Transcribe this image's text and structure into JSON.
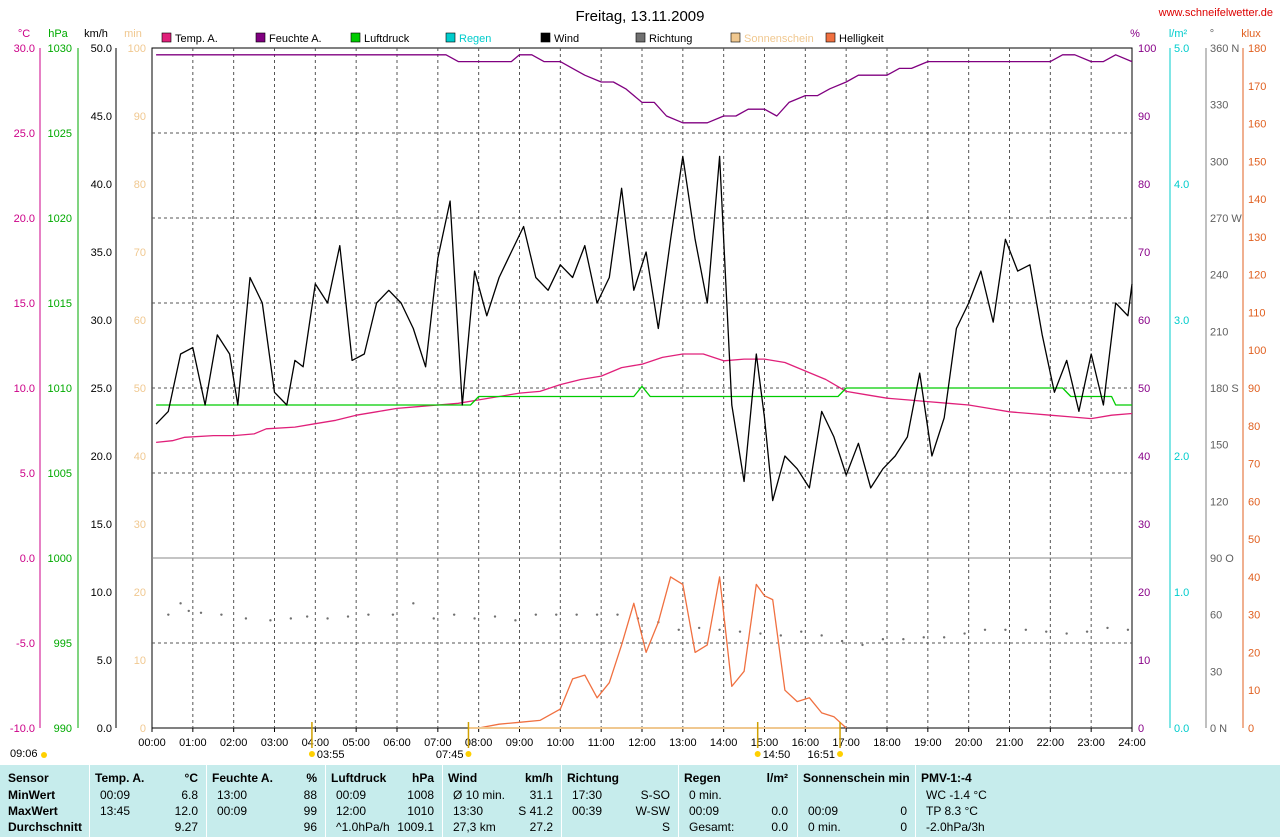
{
  "chart_data": {
    "type": "line",
    "title": "Freitag, 13.11.2009",
    "source": "www.schneifelwetter.de",
    "x_ticks": [
      "00:00",
      "01:00",
      "02:00",
      "03:00",
      "04:00",
      "05:00",
      "06:00",
      "07:00",
      "08:00",
      "09:00",
      "10:00",
      "11:00",
      "12:00",
      "13:00",
      "14:00",
      "15:00",
      "16:00",
      "17:00",
      "18:00",
      "19:00",
      "20:00",
      "21:00",
      "22:00",
      "23:00",
      "24:00"
    ],
    "axes": {
      "temp": {
        "unit": "°C",
        "ticks": [
          "30.0",
          "25.0",
          "20.0",
          "15.0",
          "10.0",
          "5.0",
          "0.0",
          "-5.0",
          "-10.0"
        ],
        "range": [
          -10,
          30
        ],
        "color": "#cc0088"
      },
      "pressure": {
        "unit": "hPa",
        "ticks": [
          "1030",
          "1025",
          "1020",
          "1015",
          "1010",
          "1005",
          "1000",
          "995",
          "990"
        ],
        "range": [
          990,
          1030
        ],
        "color": "#00aa00"
      },
      "wind": {
        "unit": "km/h",
        "ticks": [
          "50.0",
          "45.0",
          "40.0",
          "35.0",
          "30.0",
          "25.0",
          "20.0",
          "15.0",
          "10.0",
          "5.0",
          "0.0"
        ],
        "range_upper": [
          10,
          50
        ],
        "color": "#000000"
      },
      "minutes": {
        "unit": "min",
        "ticks": [
          "100",
          "90",
          "80",
          "70",
          "60",
          "50",
          "40",
          "30",
          "20",
          "10",
          "0"
        ],
        "color": "#f0c890"
      },
      "humidity": {
        "unit": "%",
        "ticks": [
          "100",
          "90",
          "80",
          "70",
          "60",
          "50",
          "40",
          "30",
          "20",
          "10",
          "0"
        ],
        "range": [
          0,
          100
        ],
        "color": "#880088"
      },
      "rain": {
        "unit": "l/m²",
        "ticks": [
          "5.0",
          "4.0",
          "3.0",
          "2.0",
          "1.0",
          "0.0"
        ],
        "range": [
          0,
          5
        ],
        "color": "#00cccc"
      },
      "direction": {
        "unit": "°",
        "ticks": [
          "360 N",
          "330",
          "300",
          "270 W",
          "240",
          "210",
          "180 S",
          "150",
          "120",
          "90 O",
          "60",
          "30",
          "0 N"
        ],
        "range": [
          0,
          360
        ],
        "color": "#808080"
      },
      "brightness": {
        "unit": "klux",
        "ticks": [
          "180",
          "170",
          "160",
          "150",
          "140",
          "130",
          "120",
          "110",
          "100",
          "90",
          "80",
          "70",
          "60",
          "50",
          "40",
          "30",
          "20",
          "10",
          "0"
        ],
        "range": [
          0,
          180
        ],
        "color": "#e06020"
      }
    },
    "legend": [
      {
        "name": "Temp. A.",
        "color": "#e0207a"
      },
      {
        "name": "Feuchte A.",
        "color": "#800080"
      },
      {
        "name": "Luftdruck",
        "color": "#00cc00"
      },
      {
        "name": "Regen",
        "color": "#00cccc"
      },
      {
        "name": "Wind",
        "color": "#000000"
      },
      {
        "name": "Richtung",
        "color": "#707070"
      },
      {
        "name": "Sonnenschein",
        "color": "#f0c890"
      },
      {
        "name": "Helligkeit",
        "color": "#f07040"
      }
    ],
    "series": [
      {
        "key": "temp",
        "axis": "temp",
        "color": "#e0207a",
        "x": [
          0.1,
          0.5,
          0.8,
          1.5,
          2.0,
          2.5,
          2.8,
          3.5,
          4.0,
          4.5,
          5.0,
          5.5,
          6.0,
          6.5,
          7.0,
          7.5,
          8.0,
          8.5,
          9.0,
          9.5,
          10.0,
          10.5,
          11.0,
          11.5,
          12.0,
          12.5,
          13.0,
          13.5,
          14.0,
          14.5,
          15.0,
          15.5,
          16.0,
          16.5,
          17.0,
          17.5,
          18.0,
          18.5,
          19.0,
          19.5,
          20.0,
          20.5,
          21.0,
          21.5,
          22.0,
          22.5,
          23.0,
          23.5,
          24.0
        ],
        "y": [
          6.8,
          6.9,
          7.1,
          7.2,
          7.2,
          7.3,
          7.6,
          7.7,
          7.9,
          8.1,
          8.4,
          8.6,
          8.8,
          8.9,
          9.0,
          9.1,
          9.3,
          9.5,
          9.7,
          9.8,
          10.2,
          10.5,
          10.7,
          11.2,
          11.4,
          11.8,
          12.0,
          12.0,
          11.6,
          11.7,
          11.7,
          11.5,
          11.0,
          10.5,
          9.8,
          9.6,
          9.4,
          9.3,
          9.2,
          9.1,
          9.0,
          8.8,
          8.6,
          8.5,
          8.4,
          8.3,
          8.2,
          8.4,
          8.5
        ]
      },
      {
        "key": "humidity",
        "axis": "humidity",
        "color": "#800080",
        "x": [
          0.1,
          1.0,
          2.0,
          3.0,
          4.0,
          5.0,
          6.0,
          7.0,
          7.2,
          7.5,
          8.0,
          8.5,
          8.8,
          9.0,
          9.3,
          9.6,
          10.0,
          10.3,
          10.6,
          11.0,
          11.3,
          11.6,
          12.0,
          12.3,
          12.6,
          13.0,
          13.3,
          13.6,
          14.0,
          14.3,
          14.6,
          15.0,
          15.3,
          15.6,
          16.0,
          16.3,
          16.6,
          17.0,
          17.3,
          17.6,
          18.0,
          18.3,
          18.6,
          19.0,
          19.3,
          19.6,
          20.0,
          20.5,
          21.0,
          21.5,
          21.8,
          22.0,
          22.3,
          22.6,
          23.0,
          23.3,
          23.6,
          24.0
        ],
        "y": [
          99,
          99,
          99,
          99,
          99,
          99,
          99,
          99,
          99,
          98,
          98,
          98,
          98,
          99,
          99,
          98,
          98,
          97,
          96,
          95,
          95,
          94,
          92,
          92,
          90,
          89,
          89,
          89,
          90,
          90,
          91,
          91,
          90,
          92,
          93,
          93,
          94,
          95,
          96,
          96,
          96,
          97,
          97,
          98,
          98,
          98,
          98,
          98,
          98,
          98,
          98,
          98,
          99,
          99,
          98,
          98,
          99,
          98
        ]
      },
      {
        "key": "pressure",
        "axis": "pressure",
        "color": "#00cc00",
        "x": [
          0.1,
          2.0,
          4.0,
          6.0,
          7.8,
          8.0,
          8.5,
          9.0,
          10.0,
          11.0,
          11.8,
          12.0,
          12.2,
          13.0,
          14.0,
          15.0,
          16.0,
          16.8,
          17.0,
          17.2,
          18.0,
          19.0,
          20.0,
          21.0,
          22.0,
          22.3,
          22.5,
          23.0,
          23.5,
          23.6,
          24.0
        ],
        "y": [
          1009,
          1009,
          1009,
          1009,
          1009,
          1009.5,
          1009.5,
          1009.5,
          1009.5,
          1009.5,
          1009.5,
          1010.1,
          1009.5,
          1009.5,
          1009.5,
          1009.5,
          1009.5,
          1009.5,
          1010,
          1010,
          1010,
          1010,
          1010,
          1010,
          1010,
          1010,
          1009.5,
          1009.5,
          1009.5,
          1009,
          1009
        ]
      },
      {
        "key": "wind",
        "axis": "wind",
        "color": "#000000",
        "x": [
          0.1,
          0.4,
          0.7,
          1.0,
          1.3,
          1.6,
          1.9,
          2.1,
          2.4,
          2.7,
          3.0,
          3.3,
          3.5,
          3.7,
          4.0,
          4.3,
          4.6,
          4.9,
          5.2,
          5.5,
          5.8,
          6.1,
          6.4,
          6.7,
          7.0,
          7.3,
          7.6,
          7.9,
          8.2,
          8.5,
          8.8,
          9.1,
          9.4,
          9.7,
          10.0,
          10.3,
          10.6,
          10.9,
          11.2,
          11.5,
          11.8,
          12.1,
          12.4,
          12.7,
          13.0,
          13.3,
          13.6,
          13.9,
          14.2,
          14.5,
          14.8,
          15.0,
          15.2,
          15.5,
          15.8,
          16.1,
          16.4,
          16.7,
          17.0,
          17.3,
          17.6,
          17.9,
          18.2,
          18.5,
          18.8,
          19.1,
          19.4,
          19.7,
          20.0,
          20.3,
          20.6,
          20.9,
          21.2,
          21.5,
          21.8,
          22.1,
          22.4,
          22.7,
          23.0,
          23.3,
          23.6,
          23.9,
          24.0
        ],
        "y": [
          20.5,
          21.5,
          26,
          26.5,
          22,
          27.5,
          26,
          22,
          32,
          30,
          23,
          22,
          25.5,
          25,
          31.5,
          30,
          34.5,
          25.5,
          26,
          30,
          31,
          30,
          28,
          25,
          33.5,
          38,
          22,
          32.5,
          29,
          32,
          34,
          36,
          32,
          31,
          33,
          32,
          34.5,
          30,
          32,
          39,
          31,
          34,
          28,
          35,
          41.5,
          35,
          30,
          41.5,
          22,
          16,
          26,
          21,
          14.5,
          18,
          17,
          15.5,
          21.5,
          19.5,
          16.5,
          19,
          15.5,
          17,
          18,
          19.5,
          24.5,
          18,
          21,
          28,
          30,
          32.5,
          28.5,
          35,
          32.5,
          33,
          27.5,
          23,
          25.5,
          21.5,
          26,
          22,
          30,
          29,
          31.5
        ]
      },
      {
        "key": "brightness",
        "axis": "brightness",
        "color": "#f07040",
        "x": [
          8.0,
          8.5,
          9.0,
          9.5,
          10.0,
          10.3,
          10.6,
          10.9,
          11.2,
          11.5,
          11.8,
          12.1,
          12.4,
          12.7,
          13.0,
          13.3,
          13.6,
          13.9,
          14.2,
          14.5,
          14.8,
          15.0,
          15.2,
          15.5,
          15.8,
          16.1,
          16.4,
          16.7,
          17.0
        ],
        "y": [
          0,
          1,
          1.5,
          2,
          5,
          13,
          14,
          8,
          12,
          22,
          33,
          20,
          28,
          40,
          38,
          20,
          22,
          40,
          11,
          15,
          38,
          35,
          34,
          10,
          7,
          8,
          4,
          3,
          0
        ]
      },
      {
        "key": "sunshine",
        "axis": "minutes",
        "color": "#f0c890",
        "x": [
          7.75,
          16.85
        ],
        "y": [
          0,
          0
        ]
      }
    ],
    "direction_points": [
      [
        0.4,
        60
      ],
      [
        0.7,
        66
      ],
      [
        0.9,
        62
      ],
      [
        1.2,
        61
      ],
      [
        1.7,
        60
      ],
      [
        2.3,
        58
      ],
      [
        2.9,
        57
      ],
      [
        3.4,
        58
      ],
      [
        3.8,
        59
      ],
      [
        4.3,
        58
      ],
      [
        4.8,
        59
      ],
      [
        5.3,
        60
      ],
      [
        5.9,
        60
      ],
      [
        6.4,
        66
      ],
      [
        6.9,
        58
      ],
      [
        7.4,
        60
      ],
      [
        7.9,
        58
      ],
      [
        8.4,
        59
      ],
      [
        8.9,
        57
      ],
      [
        9.4,
        60
      ],
      [
        9.9,
        60
      ],
      [
        10.4,
        60
      ],
      [
        10.9,
        60
      ],
      [
        11.4,
        60
      ],
      [
        11.9,
        58
      ],
      [
        12.4,
        56
      ],
      [
        12.9,
        52
      ],
      [
        13.4,
        53
      ],
      [
        13.9,
        52
      ],
      [
        14.4,
        51
      ],
      [
        14.9,
        50
      ],
      [
        15.4,
        49
      ],
      [
        15.9,
        51
      ],
      [
        16.4,
        49
      ],
      [
        16.9,
        46
      ],
      [
        17.4,
        44
      ],
      [
        17.9,
        47
      ],
      [
        18.4,
        47
      ],
      [
        18.9,
        48
      ],
      [
        19.4,
        48
      ],
      [
        19.9,
        50
      ],
      [
        20.4,
        52
      ],
      [
        20.9,
        52
      ],
      [
        21.4,
        52
      ],
      [
        21.9,
        51
      ],
      [
        22.4,
        50
      ],
      [
        22.9,
        51
      ],
      [
        23.4,
        53
      ],
      [
        23.9,
        52
      ]
    ],
    "events": {
      "sunrise_time": "07:45",
      "sunset_time": "16:51",
      "markers": [
        "09:06",
        "03:55",
        "07:45",
        "14:50",
        "16:51"
      ]
    }
  },
  "summary": {
    "rows": [
      "Sensor",
      "MinWert",
      "MaxWert",
      "Durchschnitt"
    ],
    "columns": [
      {
        "name": "Temp. A.",
        "unit": "°C",
        "cells": [
          [
            "00:09",
            "6.8"
          ],
          [
            "13:45",
            "12.0"
          ],
          [
            "",
            "9.27"
          ]
        ]
      },
      {
        "name": "Feuchte A.",
        "unit": "%",
        "cells": [
          [
            "13:00",
            "88"
          ],
          [
            "00:09",
            "99"
          ],
          [
            "",
            "96"
          ]
        ]
      },
      {
        "name": "Luftdruck",
        "unit": "hPa",
        "cells": [
          [
            "00:09",
            "1008"
          ],
          [
            "12:00",
            "1010"
          ],
          [
            "^1.0hPa/h",
            "1009.1"
          ]
        ]
      },
      {
        "name": "Wind",
        "unit": "km/h",
        "cells": [
          [
            "Ø 10 min.",
            "31.1"
          ],
          [
            "13:30",
            "S 41.2"
          ],
          [
            "27,3 km",
            "27.2"
          ]
        ]
      },
      {
        "name": "Richtung",
        "unit": "",
        "cells": [
          [
            "17:30",
            "S-SO"
          ],
          [
            "00:39",
            "W-SW"
          ],
          [
            "",
            "S"
          ]
        ]
      },
      {
        "name": "Regen",
        "unit": "l/m²",
        "cells": [
          [
            "0 min.",
            ""
          ],
          [
            "00:09",
            "0.0"
          ],
          [
            "Gesamt:",
            "0.0"
          ]
        ]
      },
      {
        "name": "Sonnenschein min",
        "unit": "",
        "cells": [
          [
            "",
            ""
          ],
          [
            "00:09",
            "0"
          ],
          [
            "0 min.",
            "0"
          ]
        ]
      },
      {
        "name": "PMV-1:-4",
        "unit": "",
        "cells": [
          [
            "WC -1.4 °C",
            ""
          ],
          [
            "TP 8.3 °C",
            ""
          ],
          [
            "-2.0hPa/3h",
            ""
          ]
        ]
      }
    ]
  }
}
